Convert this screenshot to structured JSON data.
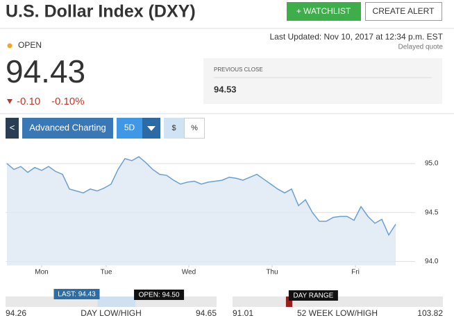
{
  "header": {
    "title": "U.S. Dollar Index (DXY)",
    "watchlist": "+ WATCHLIST",
    "create_alert": "CREATE ALERT"
  },
  "status": "OPEN",
  "last_updated": "Last Updated: Nov 10, 2017 at 12:34 p.m. EST",
  "delayed": "Delayed quote",
  "price": 94.43,
  "change": "-0.10",
  "change_percent": "-0.10%",
  "previous_close": {
    "label": "PREVIOUS CLOSE",
    "value": 94.53
  },
  "toolbar": {
    "back": "<",
    "advanced": "Advanced Charting",
    "range": "5D",
    "dollar": "$",
    "percent": "%"
  },
  "chart_data": {
    "type": "area",
    "color": "#6a9fd4",
    "values": [
      95.0,
      94.94,
      94.97,
      94.91,
      94.96,
      94.93,
      94.97,
      94.92,
      94.89,
      94.74,
      94.72,
      94.7,
      94.74,
      94.72,
      94.75,
      94.79,
      94.94,
      95.05,
      95.03,
      95.07,
      95.01,
      94.94,
      94.89,
      94.88,
      94.83,
      94.79,
      94.81,
      94.82,
      94.79,
      94.81,
      94.82,
      94.83,
      94.86,
      94.85,
      94.83,
      94.86,
      94.89,
      94.84,
      94.79,
      94.74,
      94.7,
      94.74,
      94.57,
      94.63,
      94.5,
      94.41,
      94.41,
      94.45,
      94.46,
      94.46,
      94.42,
      94.56,
      94.46,
      94.39,
      94.43,
      94.27,
      94.38
    ],
    "xlim": [
      0,
      56
    ],
    "xticks": [
      {
        "value": 5,
        "label": "Mon"
      },
      {
        "value": 14.3,
        "label": "Tue"
      },
      {
        "value": 26.2,
        "label": "Wed"
      },
      {
        "value": 38.2,
        "label": "Thu"
      },
      {
        "value": 50.2,
        "label": "Fri"
      }
    ],
    "ylim": [
      93.96,
      95.22
    ],
    "yticks": [
      {
        "value": 94,
        "label": "94.0"
      },
      {
        "value": 94.5,
        "label": "94.5"
      },
      {
        "value": 95,
        "label": "95.0"
      }
    ],
    "grid": true
  },
  "day_range": {
    "low": 94.26,
    "label": "DAY LOW/HIGH",
    "high": 94.65,
    "last": {
      "value": 94.43,
      "label": "LAST: 94.43"
    },
    "open": {
      "value": 94.5,
      "label": "OPEN: 94.50"
    }
  },
  "week52": {
    "low": 91.01,
    "label": "52 WEEK LOW/HIGH",
    "high": 103.82,
    "marker_label": "DAY RANGE"
  }
}
